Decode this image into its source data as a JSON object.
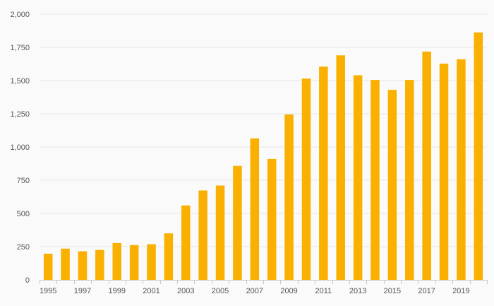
{
  "chart_data": {
    "type": "bar",
    "title": "",
    "xlabel": "",
    "ylabel": "",
    "ylim": [
      0,
      2000
    ],
    "yticks": [
      0,
      250,
      500,
      750,
      1000,
      1250,
      1500,
      1750,
      2000
    ],
    "ytick_labels": [
      "0",
      "250",
      "500",
      "750",
      "1,000",
      "1,250",
      "1,500",
      "1,750",
      "2,000"
    ],
    "xtick_labels": [
      "1995",
      "1997",
      "1999",
      "2001",
      "2003",
      "2005",
      "2007",
      "2009",
      "2011",
      "2013",
      "2015",
      "2017",
      "2019"
    ],
    "grid": true,
    "bar_color": "#f9b000",
    "categories": [
      "1995",
      "1996",
      "1997",
      "1998",
      "1999",
      "2000",
      "2001",
      "2002",
      "2003",
      "2004",
      "2005",
      "2006",
      "2007",
      "2008",
      "2009",
      "2010",
      "2011",
      "2012",
      "2013",
      "2014",
      "2015",
      "2016",
      "2017",
      "2018",
      "2019",
      "2020"
    ],
    "values": [
      197,
      235,
      215,
      225,
      277,
      262,
      268,
      350,
      560,
      673,
      710,
      858,
      1065,
      910,
      1245,
      1515,
      1605,
      1690,
      1540,
      1505,
      1430,
      1505,
      1718,
      1627,
      1660,
      1862
    ]
  }
}
